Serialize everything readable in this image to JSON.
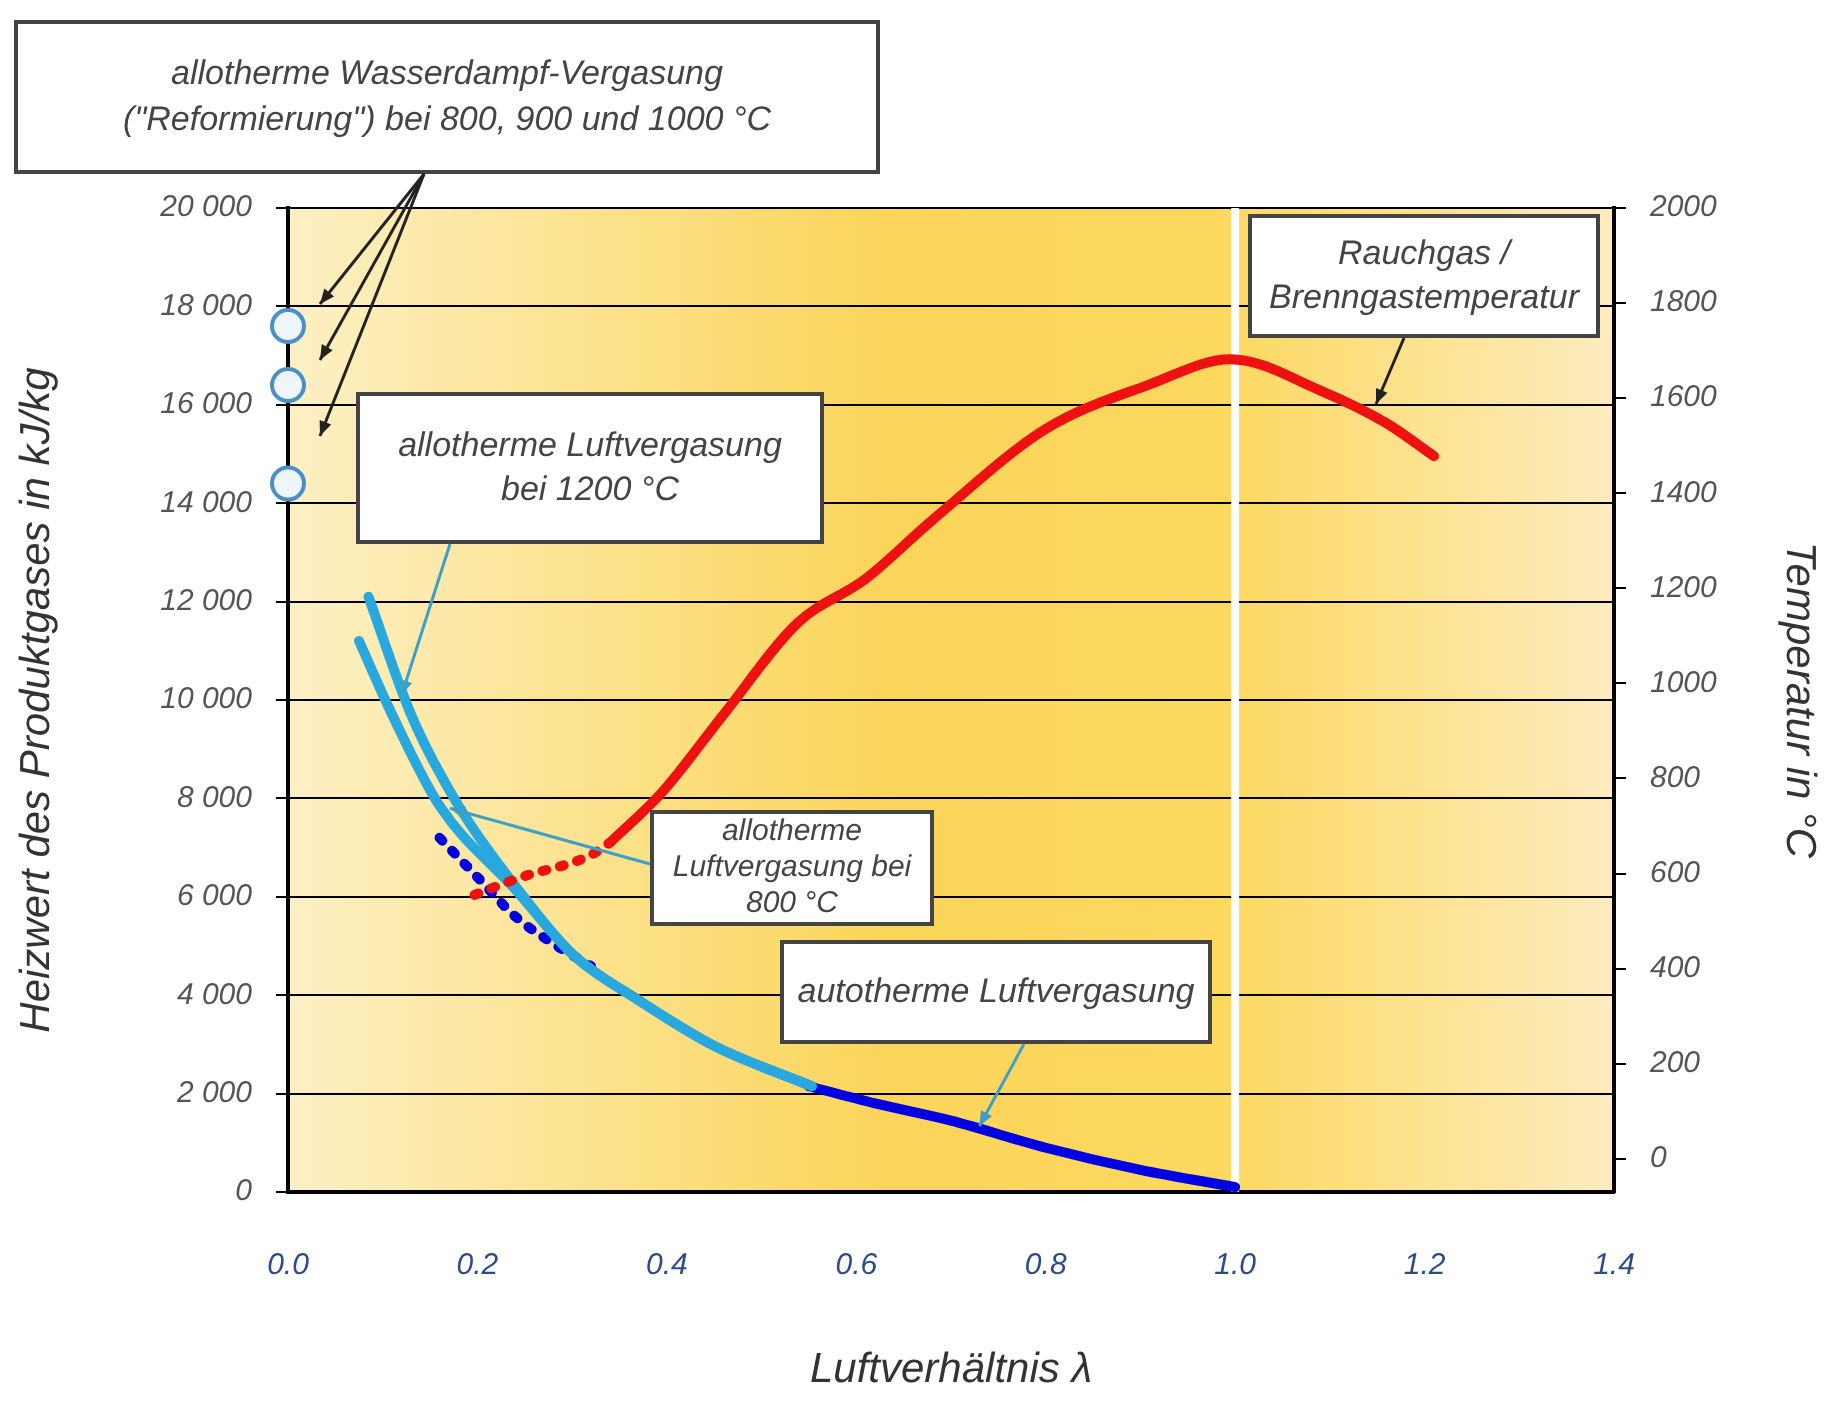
{
  "chart_data": {
    "type": "line",
    "xlabel": "Luftverhältnis λ",
    "ylabel": "Heizwert des Produktgases in kJ/kg",
    "y2label": "Temperatur in °C",
    "xlim": [
      0,
      1.4
    ],
    "xticks": [
      {
        "value": 0,
        "label": "0.0"
      },
      0.2,
      0.4,
      0.6,
      0.8,
      {
        "value": 1,
        "label": "1.0"
      },
      1.2,
      1.4
    ],
    "ylim": [
      0,
      20000
    ],
    "yticks": [
      0,
      {
        "value": 2000,
        "label": "2 000"
      },
      {
        "value": 4000,
        "label": "4 000"
      },
      {
        "value": 6000,
        "label": "6 000"
      },
      {
        "value": 8000,
        "label": "8 000"
      },
      {
        "value": 10000,
        "label": "10 000"
      },
      {
        "value": 12000,
        "label": "12 000"
      },
      {
        "value": 14000,
        "label": "14 000"
      },
      {
        "value": 16000,
        "label": "16 000"
      },
      {
        "value": 18000,
        "label": "18 000"
      },
      {
        "value": 20000,
        "label": "20 000"
      }
    ],
    "y2lim": [
      -70,
      2000
    ],
    "y2ticks": [
      0,
      200,
      400,
      600,
      800,
      1000,
      1200,
      1400,
      1600,
      1800,
      2000
    ],
    "grid": "y",
    "legend": false,
    "series": [
      {
        "type": "line",
        "color": "#0000e0",
        "line_style": "dotted",
        "marker": "none",
        "x": [
          0.16,
          0.2,
          0.24,
          0.28,
          0.32
        ],
        "values": [
          7200,
          6400,
          5600,
          5050,
          4590
        ]
      },
      {
        "type": "line",
        "color": "#0000e0",
        "line_style": "solid",
        "marker": "none",
        "x": [
          0.55,
          0.62,
          0.7,
          0.8,
          0.9,
          1.0
        ],
        "values": [
          2150,
          1800,
          1450,
          900,
          450,
          100
        ]
      },
      {
        "type": "line",
        "color": "#29a8e0",
        "line_style": "solid",
        "marker": "none",
        "x": [
          0.085,
          0.13,
          0.18,
          0.24,
          0.3,
          0.37,
          0.45,
          0.553
        ],
        "values": [
          12100,
          9700,
          7850,
          6220,
          4840,
          3900,
          2970,
          2150
        ]
      },
      {
        "type": "line",
        "color": "#29a8e0",
        "line_style": "solid",
        "marker": "none",
        "x": [
          0.075,
          0.11,
          0.16,
          0.24,
          0.3,
          0.37,
          0.45,
          0.553
        ],
        "values": [
          11200,
          9700,
          7850,
          6150,
          4840,
          3900,
          2970,
          2150
        ]
      },
      {
        "type": "line",
        "color": "#ee1111",
        "axis": "y2",
        "line_style": "dotted",
        "marker": "none",
        "x": [
          0.197,
          0.246,
          0.318,
          0.34
        ],
        "values": [
          555,
          592,
          637,
          665
        ]
      },
      {
        "type": "line",
        "color": "#ee1111",
        "axis": "y2",
        "line_style": "solid",
        "marker": "none",
        "x": [
          0.34,
          0.395,
          0.46,
          0.538,
          0.61,
          0.68,
          0.8,
          0.91,
          0.995,
          1.09,
          1.16,
          1.21
        ],
        "values": [
          665,
          771,
          935,
          1127,
          1220,
          1343,
          1535,
          1629,
          1682,
          1616,
          1547,
          1478
        ]
      },
      {
        "type": "scatter",
        "color": "#4a90c8",
        "marker": "circle",
        "x": [
          0,
          0,
          0
        ],
        "values": [
          17600,
          16400,
          14400
        ]
      }
    ],
    "ref_lines": [
      {
        "axis": "x",
        "value": 1.0,
        "color": "#ffffff"
      }
    ],
    "annotations": [
      "allotherme Wasserdampf-Vergasung (\"Reformierung\") bei 800, 900 und 1000 °C",
      "Rauchgas / Brenngastemperatur",
      {
        "text": "allotherme Luftvergasung bei 1200 °C",
        "x": 0.12,
        "y": 10100
      },
      {
        "text": "allotherme Luftvergasung bei 800 °C",
        "x": 0.171,
        "y": 7800
      },
      {
        "text": "autotherme Luftvergasung",
        "x": 0.73,
        "y": 1340
      }
    ]
  }
}
